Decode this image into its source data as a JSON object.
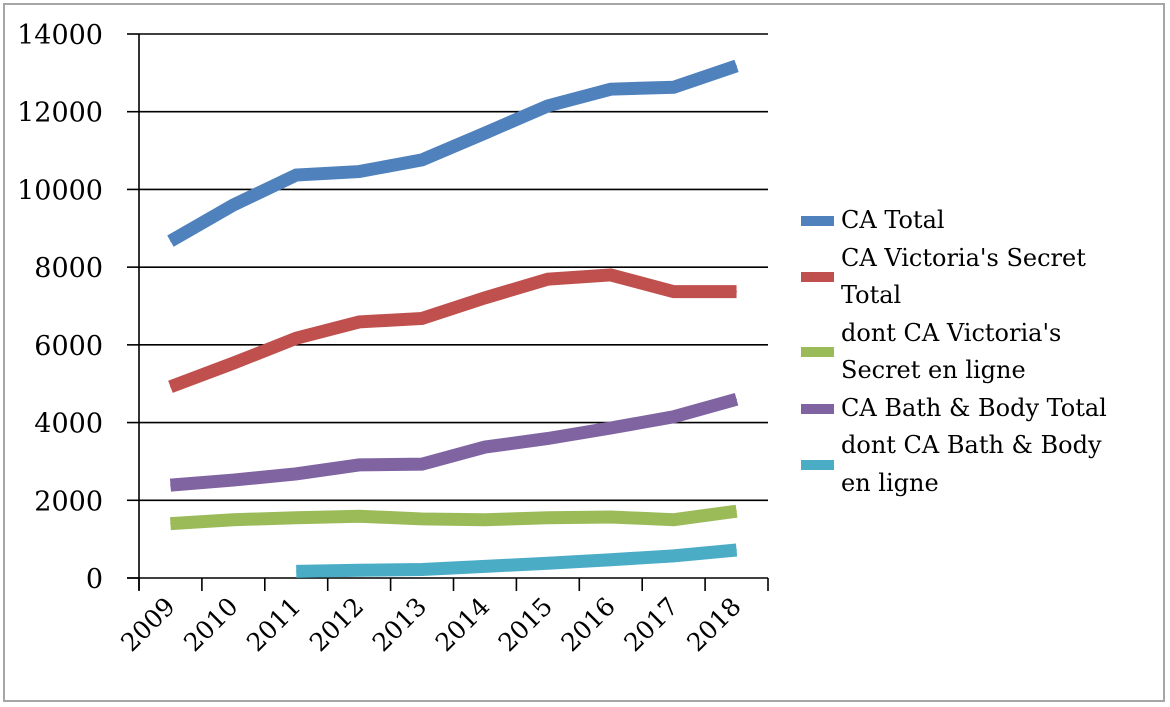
{
  "chart_data": {
    "type": "line",
    "title": "",
    "xlabel": "",
    "ylabel": "",
    "categories": [
      "2009",
      "2010",
      "2011",
      "2012",
      "2013",
      "2014",
      "2015",
      "2016",
      "2017",
      "2018"
    ],
    "ylim": [
      0,
      14000
    ],
    "yticks": [
      0,
      2000,
      4000,
      6000,
      8000,
      10000,
      12000,
      14000
    ],
    "ytick_labels": [
      "0",
      "2000",
      "4000",
      "6000",
      "8000",
      "10000",
      "12000",
      "14000"
    ],
    "grid": "horizontal",
    "legend_position": "right",
    "x_label_rotation": "-45 degrees",
    "series": [
      {
        "name": "CA Total",
        "color": "#4f81bd",
        "values": [
          8670,
          9600,
          10370,
          10460,
          10760,
          11450,
          12150,
          12580,
          12630,
          13180
        ]
      },
      {
        "name": "CA Victoria's Secret Total",
        "color": "#c0504d",
        "values": [
          4920,
          5530,
          6170,
          6590,
          6680,
          7210,
          7690,
          7800,
          7370,
          7370
        ]
      },
      {
        "name": "dont CA Victoria's Secret en ligne",
        "color": "#9bbb59",
        "values": [
          1400,
          1500,
          1550,
          1590,
          1520,
          1500,
          1550,
          1570,
          1500,
          1720
        ]
      },
      {
        "name": "CA Bath & Body Total",
        "color": "#8064a2",
        "values": [
          2390,
          2520,
          2680,
          2910,
          2930,
          3370,
          3590,
          3860,
          4150,
          4600
        ]
      },
      {
        "name": "dont CA Bath & Body en ligne",
        "color": "#4bacc6",
        "values": [
          null,
          null,
          170,
          200,
          220,
          300,
          380,
          470,
          570,
          720
        ]
      }
    ]
  },
  "legend": {
    "items": [
      {
        "lines": [
          "CA Total"
        ],
        "color": "#4f81bd"
      },
      {
        "lines": [
          "CA Victoria's Secret",
          "Total"
        ],
        "color": "#c0504d"
      },
      {
        "lines": [
          "dont CA Victoria's",
          "Secret en ligne"
        ],
        "color": "#9bbb59"
      },
      {
        "lines": [
          "CA Bath & Body Total"
        ],
        "color": "#8064a2"
      },
      {
        "lines": [
          "dont CA Bath & Body",
          "en ligne"
        ],
        "color": "#4bacc6"
      }
    ]
  }
}
